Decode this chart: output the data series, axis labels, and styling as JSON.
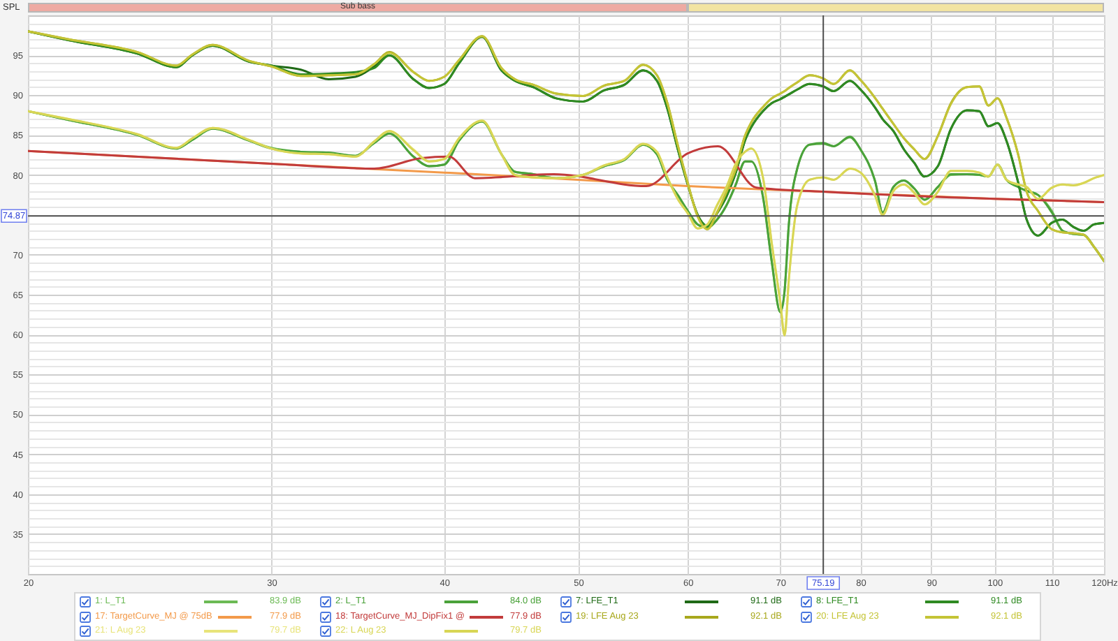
{
  "chart_data": {
    "type": "line",
    "ylabel": "SPL",
    "log": "x",
    "grid": true,
    "legend": "bottom",
    "xlim": [
      20,
      120
    ],
    "ylim": [
      30,
      100
    ],
    "xticks": [
      20,
      30,
      40,
      50,
      60,
      70,
      80,
      90,
      100,
      110,
      {
        "value": 120,
        "label": "120Hz"
      }
    ],
    "yticks": [
      {
        "value": 31,
        "label": null
      },
      {
        "value": 32,
        "label": null
      },
      {
        "value": 33,
        "label": null
      },
      {
        "value": 34,
        "label": null
      },
      35,
      {
        "value": 36,
        "label": null
      },
      {
        "value": 37,
        "label": null
      },
      {
        "value": 38,
        "label": null
      },
      {
        "value": 39,
        "label": null
      },
      40,
      {
        "value": 41,
        "label": null
      },
      {
        "value": 42,
        "label": null
      },
      {
        "value": 43,
        "label": null
      },
      {
        "value": 44,
        "label": null
      },
      45,
      {
        "value": 46,
        "label": null
      },
      {
        "value": 47,
        "label": null
      },
      {
        "value": 48,
        "label": null
      },
      {
        "value": 49,
        "label": null
      },
      50,
      {
        "value": 51,
        "label": null
      },
      {
        "value": 52,
        "label": null
      },
      {
        "value": 53,
        "label": null
      },
      {
        "value": 54,
        "label": null
      },
      55,
      {
        "value": 56,
        "label": null
      },
      {
        "value": 57,
        "label": null
      },
      {
        "value": 58,
        "label": null
      },
      {
        "value": 59,
        "label": null
      },
      60,
      {
        "value": 61,
        "label": null
      },
      {
        "value": 62,
        "label": null
      },
      {
        "value": 63,
        "label": null
      },
      {
        "value": 64,
        "label": null
      },
      65,
      {
        "value": 66,
        "label": null
      },
      {
        "value": 67,
        "label": null
      },
      {
        "value": 68,
        "label": null
      },
      {
        "value": 69,
        "label": null
      },
      70,
      {
        "value": 71,
        "label": null
      },
      {
        "value": 72,
        "label": null
      },
      {
        "value": 73,
        "label": null
      },
      {
        "value": 74,
        "label": null
      },
      {
        "value": 75,
        "label": null
      },
      {
        "value": 76,
        "label": null
      },
      {
        "value": 77,
        "label": null
      },
      {
        "value": 78,
        "label": null
      },
      {
        "value": 79,
        "label": null
      },
      80,
      {
        "value": 81,
        "label": null
      },
      {
        "value": 82,
        "label": null
      },
      {
        "value": 83,
        "label": null
      },
      {
        "value": 84,
        "label": null
      },
      85,
      {
        "value": 86,
        "label": null
      },
      {
        "value": 87,
        "label": null
      },
      {
        "value": 88,
        "label": null
      },
      {
        "value": 89,
        "label": null
      },
      90,
      {
        "value": 91,
        "label": null
      },
      {
        "value": 92,
        "label": null
      },
      {
        "value": 93,
        "label": null
      },
      {
        "value": 94,
        "label": null
      },
      95,
      {
        "value": 96,
        "label": null
      },
      {
        "value": 97,
        "label": null
      },
      {
        "value": 98,
        "label": null
      },
      {
        "value": 99,
        "label": null
      }
    ],
    "x": [
      20,
      21.4,
      24,
      25.6,
      26.3,
      27.2,
      28.9,
      30,
      31.5,
      33,
      34.5,
      35.6,
      36.5,
      38,
      39,
      40,
      41,
      42.6,
      44,
      45,
      46.4,
      48.2,
      50.4,
      52.2,
      54,
      55.7,
      57,
      58,
      59,
      60,
      61,
      62,
      63,
      64,
      65,
      66,
      66.7,
      68,
      69,
      70,
      70.5,
      71,
      72,
      73.5,
      75.19,
      76.5,
      78.6,
      80,
      82,
      83,
      84.5,
      86,
      87.5,
      89,
      91,
      93,
      95.5,
      97.5,
      99,
      100.5,
      102,
      104,
      105.5,
      107.5,
      110,
      112,
      114,
      116,
      118,
      120
    ],
    "series": [
      {
        "name": "1: L_T1",
        "color": "#6cba55",
        "values": [
          88.0,
          86.9,
          85.0,
          83.3,
          84.4,
          85.8,
          84.3,
          83.4,
          82.9,
          82.7,
          82.4,
          84.0,
          85.2,
          82.3,
          81.1,
          81.3,
          84.3,
          86.7,
          82.6,
          80.4,
          80.1,
          79.6,
          80.0,
          81.1,
          81.9,
          83.8,
          82.6,
          79.4,
          77.5,
          75.5,
          73.8,
          73.4,
          74.4,
          76.2,
          78.8,
          81.7,
          81.7,
          77.3,
          69.2,
          62.8,
          65.5,
          73.8,
          80.8,
          83.8,
          83.9,
          83.6,
          84.7,
          83.2,
          79.1,
          75.3,
          78.5,
          79.3,
          78.3,
          76.9,
          78.5,
          80.0,
          80.1,
          80.0,
          79.8,
          81.3,
          79.4,
          78.5,
          78.0,
          77.5,
          75.5,
          73.0,
          72.6,
          72.5,
          71.0,
          69.2
        ]
      },
      {
        "name": "2: L_T1",
        "color": "#4aa23a",
        "values": [
          88.0,
          86.9,
          85.0,
          83.3,
          84.4,
          85.8,
          84.3,
          83.3,
          82.9,
          82.8,
          82.4,
          84.0,
          85.2,
          82.3,
          81.1,
          81.3,
          84.3,
          86.7,
          82.6,
          80.4,
          80.1,
          79.6,
          80.0,
          81.1,
          81.9,
          83.8,
          82.6,
          79.4,
          77.5,
          75.5,
          73.8,
          73.4,
          74.4,
          76.2,
          78.8,
          81.7,
          81.7,
          77.3,
          69.2,
          62.8,
          65.5,
          73.8,
          80.8,
          83.8,
          84.0,
          83.6,
          84.8,
          83.2,
          79.1,
          75.3,
          78.5,
          79.3,
          78.3,
          76.9,
          78.5,
          80.1,
          80.1,
          80.0,
          79.8,
          81.3,
          79.4,
          78.5,
          78.0,
          77.5,
          75.3,
          73.0,
          72.6,
          72.5,
          71.0,
          69.2
        ]
      },
      {
        "name": "7: LFE_T1",
        "color": "#1f6a16",
        "values": [
          98.0,
          96.9,
          95.2,
          93.5,
          95.0,
          96.2,
          94.2,
          93.7,
          93.2,
          92.0,
          92.3,
          93.6,
          95.0,
          92.0,
          90.9,
          91.4,
          94.0,
          97.3,
          93.1,
          91.8,
          91.0,
          89.6,
          89.2,
          90.6,
          91.3,
          93.1,
          91.8,
          88.3,
          83.3,
          78.8,
          75.0,
          73.6,
          75.2,
          77.3,
          80.3,
          84.3,
          86.0,
          88.0,
          89.0,
          89.5,
          89.8,
          90.1,
          90.7,
          91.4,
          91.1,
          90.5,
          91.8,
          90.7,
          88.4,
          87.0,
          85.5,
          83.2,
          81.5,
          79.8,
          81.1,
          85.8,
          88.1,
          88.0,
          86.1,
          86.5,
          84.3,
          79.1,
          74.4,
          72.4,
          74.0,
          74.4,
          73.5,
          73.0,
          73.8,
          74.0
        ]
      },
      {
        "name": "8: LFE_T1",
        "color": "#2f8a22",
        "values": [
          98.0,
          96.9,
          95.2,
          93.5,
          95.0,
          96.2,
          94.2,
          93.7,
          92.6,
          92.7,
          92.9,
          93.4,
          95.0,
          92.0,
          90.9,
          91.4,
          94.0,
          97.3,
          93.1,
          91.8,
          91.0,
          89.6,
          89.2,
          90.6,
          91.3,
          93.1,
          91.8,
          88.3,
          83.3,
          78.8,
          75.0,
          73.6,
          75.2,
          77.3,
          80.3,
          84.3,
          86.0,
          88.0,
          89.0,
          89.5,
          89.8,
          90.1,
          90.7,
          91.4,
          91.1,
          90.5,
          91.8,
          90.7,
          88.4,
          87.0,
          85.5,
          83.2,
          81.5,
          79.8,
          81.1,
          85.8,
          88.1,
          88.0,
          86.1,
          86.5,
          84.3,
          79.1,
          74.4,
          72.4,
          74.0,
          74.4,
          73.5,
          73.0,
          73.8,
          74.0
        ]
      },
      {
        "name": "17: TargetCurve_MJ @ 75dB",
        "color": "#f39a4a",
        "x": [
          20,
          30,
          40,
          50,
          60,
          75.19,
          100,
          120
        ],
        "values": [
          83.0,
          81.4,
          80.3,
          79.4,
          78.6,
          77.9,
          77.0,
          76.6
        ]
      },
      {
        "name": "18: TargetCurve_MJ_DipFix1 @",
        "color": "#c23b3b",
        "x": [
          20,
          30,
          35.6,
          38.5,
          40.3,
          42.1,
          48,
          56,
          60,
          63.1,
          67.3,
          75.19,
          100,
          120
        ],
        "values": [
          83.0,
          81.4,
          80.8,
          82.1,
          82.3,
          79.6,
          80.1,
          78.6,
          82.7,
          83.6,
          78.4,
          77.9,
          77.0,
          76.6
        ]
      },
      {
        "name": "19: LFE Aug 23",
        "color": "#a8a81c",
        "values": [
          98.0,
          97.0,
          95.4,
          93.7,
          95.1,
          96.3,
          94.3,
          93.6,
          92.4,
          92.5,
          92.6,
          93.9,
          95.4,
          92.9,
          91.8,
          92.3,
          94.4,
          97.4,
          93.4,
          92.0,
          91.3,
          90.2,
          89.9,
          91.2,
          91.8,
          93.8,
          92.5,
          89.0,
          83.8,
          79.0,
          74.8,
          73.2,
          75.3,
          77.9,
          80.8,
          84.9,
          86.6,
          88.5,
          89.6,
          90.2,
          90.5,
          90.9,
          91.6,
          92.5,
          92.1,
          91.4,
          93.1,
          91.9,
          89.6,
          88.3,
          86.4,
          84.6,
          83.2,
          82.0,
          84.9,
          89.0,
          91.0,
          91.1,
          88.7,
          89.6,
          87.2,
          82.6,
          77.9,
          75.5,
          73.2,
          72.8,
          72.7,
          72.5,
          71.0,
          69.2
        ]
      },
      {
        "name": "20: LFE Aug 23",
        "color": "#c4c436",
        "values": [
          98.0,
          97.0,
          95.4,
          93.7,
          95.1,
          96.3,
          94.3,
          93.6,
          92.4,
          92.5,
          92.6,
          93.9,
          95.3,
          92.9,
          91.8,
          92.3,
          94.4,
          97.4,
          93.4,
          92.0,
          91.3,
          90.2,
          89.9,
          91.2,
          91.8,
          93.8,
          92.5,
          89.0,
          83.8,
          79.0,
          74.8,
          73.2,
          75.3,
          77.9,
          80.8,
          84.9,
          86.6,
          88.5,
          89.6,
          90.2,
          90.5,
          90.9,
          91.6,
          92.5,
          92.1,
          91.4,
          93.1,
          91.9,
          89.6,
          88.3,
          86.4,
          84.6,
          83.2,
          82.0,
          84.9,
          88.9,
          91.0,
          91.1,
          88.7,
          89.6,
          87.2,
          82.6,
          77.9,
          75.5,
          73.2,
          72.8,
          72.7,
          72.5,
          71.0,
          69.2
        ]
      },
      {
        "name": "21: L Aug 23",
        "color": "#e8e47a",
        "values": [
          88.0,
          87.0,
          85.1,
          83.4,
          84.6,
          85.9,
          84.4,
          83.3,
          82.7,
          82.6,
          82.3,
          84.2,
          85.5,
          83.2,
          81.7,
          82.0,
          84.6,
          86.8,
          82.6,
          80.0,
          79.7,
          79.6,
          80.0,
          81.2,
          82.0,
          83.9,
          82.9,
          79.7,
          77.0,
          75.2,
          73.3,
          73.8,
          76.2,
          78.5,
          81.4,
          82.9,
          83.3,
          79.7,
          71.5,
          64.0,
          59.9,
          66.9,
          76.2,
          79.4,
          79.7,
          79.4,
          80.8,
          80.3,
          77.3,
          75.0,
          78.0,
          78.8,
          77.7,
          76.3,
          77.9,
          80.5,
          80.5,
          80.3,
          79.8,
          81.3,
          79.4,
          78.8,
          78.5,
          77.0,
          78.4,
          78.8,
          78.7,
          79.0,
          79.6,
          80.0
        ]
      },
      {
        "name": "22: L Aug 23",
        "color": "#d8d655",
        "values": [
          88.0,
          87.0,
          85.1,
          83.4,
          84.6,
          85.9,
          84.4,
          83.3,
          82.7,
          82.6,
          82.3,
          84.2,
          85.5,
          83.1,
          81.7,
          82.0,
          84.6,
          86.8,
          82.6,
          80.0,
          79.7,
          79.6,
          80.0,
          81.2,
          82.0,
          83.9,
          82.9,
          79.7,
          77.0,
          75.2,
          73.3,
          73.8,
          76.2,
          78.5,
          81.4,
          82.9,
          83.3,
          79.7,
          71.5,
          64.0,
          59.9,
          66.9,
          76.2,
          79.4,
          79.7,
          79.4,
          80.8,
          80.3,
          77.3,
          75.0,
          78.0,
          78.8,
          77.8,
          76.3,
          77.9,
          80.5,
          80.5,
          80.3,
          79.8,
          81.3,
          79.4,
          78.8,
          78.5,
          77.0,
          78.4,
          78.8,
          78.7,
          79.0,
          79.6,
          80.0
        ]
      }
    ],
    "ref_lines": [
      {
        "axis": "x",
        "value": 75.19,
        "label": "75.19",
        "color": "#4d4d4d"
      },
      {
        "axis": "y",
        "value": 74.87,
        "label": "74.87",
        "color": "#4d4d4d"
      }
    ],
    "annotations": [
      "83.9 dB",
      "84.0 dB",
      "91.1 dB",
      "91.1 dB",
      "77.9 dB",
      "77.9 dB",
      "92.1 dB",
      "92.1 dB",
      "79.7 dB",
      "79.7 dB",
      "Sub bass"
    ]
  }
}
